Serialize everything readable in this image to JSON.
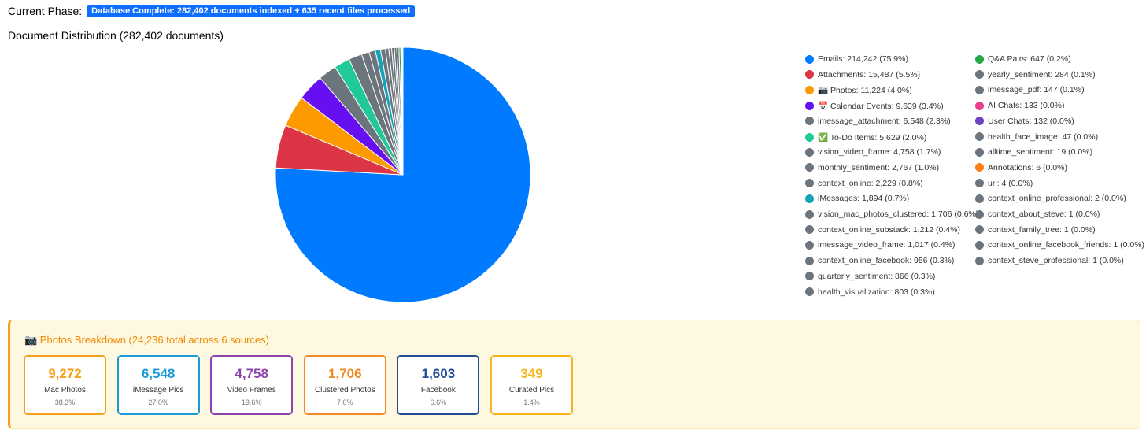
{
  "header": {
    "label": "Current Phase:",
    "badge": "Database Complete: 282,402 documents indexed + 635 recent files processed"
  },
  "chart_data": {
    "type": "pie",
    "title": "Document Distribution (282,402 documents)",
    "categories": [
      "Emails: 214,242 (75.9%)",
      "Attachments: 15,487 (5.5%)",
      "📷 Photos: 11,224 (4.0%)",
      "📅 Calendar Events: 9,639 (3.4%)",
      "imessage_attachment: 6,548 (2.3%)",
      "✅ To-Do Items: 5,629 (2.0%)",
      "vision_video_frame: 4,758 (1.7%)",
      "monthly_sentiment: 2,767 (1.0%)",
      "context_online: 2,229 (0.8%)",
      "iMessages: 1,894 (0.7%)",
      "vision_mac_photos_clustered: 1,706 (0.6%)",
      "context_online_substack: 1,212 (0.4%)",
      "imessage_video_frame: 1,017 (0.4%)",
      "context_online_facebook: 956 (0.3%)",
      "quarterly_sentiment: 866 (0.3%)",
      "health_visualization: 803 (0.3%)",
      "Q&A Pairs: 647 (0.2%)",
      "yearly_sentiment: 284 (0.1%)",
      "imessage_pdf: 147 (0.1%)",
      "AI Chats: 133 (0.0%)",
      "User Chats: 132 (0.0%)",
      "health_face_image: 47 (0.0%)",
      "alltime_sentiment: 19 (0.0%)",
      "Annotations: 6 (0.0%)",
      "url: 4 (0.0%)",
      "context_online_professional: 2 (0.0%)",
      "context_about_steve: 1 (0.0%)",
      "context_family_tree: 1 (0.0%)",
      "context_online_facebook_friends: 1 (0.0%)",
      "context_steve_professional: 1 (0.0%)"
    ],
    "values": [
      214242,
      15487,
      11224,
      9639,
      6548,
      5629,
      4758,
      2767,
      2229,
      1894,
      1706,
      1212,
      1017,
      956,
      866,
      803,
      647,
      284,
      147,
      133,
      132,
      47,
      19,
      6,
      4,
      2,
      1,
      1,
      1,
      1
    ],
    "colors": [
      "#007bff",
      "#dc3545",
      "#fd9a00",
      "#6610f2",
      "#6c757d",
      "#20c997",
      "#6c757d",
      "#6c757d",
      "#6c757d",
      "#17a2b8",
      "#6c757d",
      "#6c757d",
      "#6c757d",
      "#6c757d",
      "#6c757d",
      "#6c757d",
      "#28a745",
      "#6c757d",
      "#6c757d",
      "#e83e8c",
      "#6f42c1",
      "#6c757d",
      "#6c757d",
      "#fd7e14",
      "#6c757d",
      "#6c757d",
      "#6c757d",
      "#6c757d",
      "#6c757d",
      "#6c757d"
    ]
  },
  "photos": {
    "title": "📷 Photos Breakdown (24,236 total across 6 sources)",
    "cards": [
      {
        "value": "9,272",
        "label": "Mac Photos",
        "percent": "38.3%",
        "color": "#f5a01a"
      },
      {
        "value": "6,548",
        "label": "iMessage Pics",
        "percent": "27.0%",
        "color": "#1a9bd7"
      },
      {
        "value": "4,758",
        "label": "Video Frames",
        "percent": "19.6%",
        "color": "#8e44ad"
      },
      {
        "value": "1,706",
        "label": "Clustered Photos",
        "percent": "7.0%",
        "color": "#f08a24"
      },
      {
        "value": "1,603",
        "label": "Facebook",
        "percent": "6.6%",
        "color": "#244c96"
      },
      {
        "value": "349",
        "label": "Curated Pics",
        "percent": "1.4%",
        "color": "#f7b51b"
      }
    ]
  }
}
